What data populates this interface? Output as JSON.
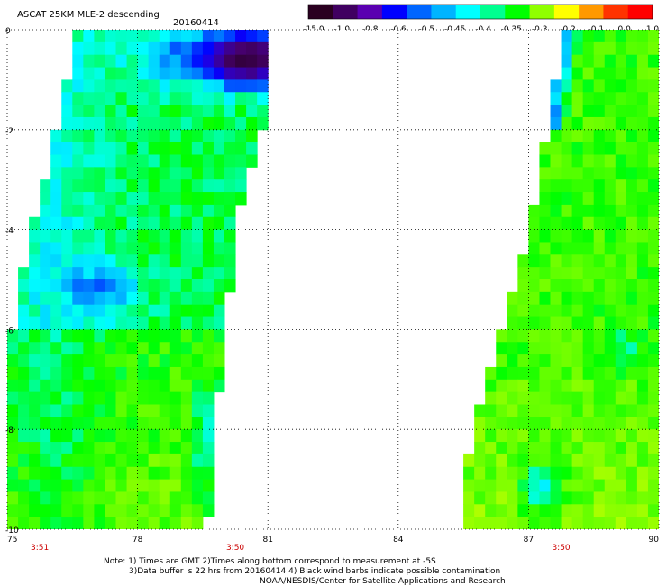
{
  "title": {
    "main": "ASCAT 25KM MLE-2 descending",
    "date": "20160414"
  },
  "colorbar": {
    "ticks": [
      "-15.0",
      "-1.0",
      "-0.8",
      "-0.6",
      "-0.5",
      "-0.45",
      "-0.4",
      "-0.35",
      "-0.3",
      "-0.2",
      "-0.1",
      "0.0",
      "1.0"
    ],
    "colors": [
      "#2a0020",
      "#400060",
      "#5a00b0",
      "#0000ff",
      "#0066ff",
      "#00b4ff",
      "#00ffff",
      "#00ff90",
      "#00ff00",
      "#90ff00",
      "#ffff00",
      "#ff9900",
      "#ff3300",
      "#ff0000"
    ]
  },
  "notes": {
    "line1": "Note: 1) Times are GMT 2)Times along bottom correspond to measurement at -5S",
    "line2": "3)Data buffer is 22 hrs from 20160414 4) Black wind barbs indicate possible contamination",
    "line3": "NOAA/NESDIS/Center for Satellite Applications and Research"
  },
  "chart_data": {
    "type": "heatmap",
    "title": "ASCAT 25KM MLE-2 descending",
    "date": "20160414",
    "x_ticks": [
      "75",
      "78",
      "81",
      "84",
      "87",
      "90"
    ],
    "y_ticks": [
      "0",
      "-2",
      "-4",
      "-6",
      "-8",
      "-10"
    ],
    "xlim": [
      75,
      90
    ],
    "ylim": [
      -10,
      0
    ],
    "grid": true,
    "time_labels": [
      {
        "lon": 75.75,
        "text": "3:51"
      },
      {
        "lon": 80.25,
        "text": "3:50"
      },
      {
        "lon": 87.75,
        "text": "3:50"
      }
    ],
    "swaths": [
      {
        "name": "west",
        "left_edge": [
          [
            76.5,
            0
          ],
          [
            76.4,
            -1
          ],
          [
            76.0,
            -2.5
          ],
          [
            75.5,
            -4.2
          ],
          [
            75.0,
            -6.5
          ],
          [
            75.0,
            -10
          ]
        ],
        "right_edge": [
          [
            81.1,
            0
          ],
          [
            81.1,
            -1.2
          ],
          [
            80.4,
            -3.3
          ],
          [
            80.1,
            -5.5
          ],
          [
            79.8,
            -7.8
          ],
          [
            79.6,
            -10
          ]
        ]
      },
      {
        "name": "east",
        "left_edge": [
          [
            87.8,
            0.0
          ],
          [
            87.5,
            -1.8
          ],
          [
            87.0,
            -4.0
          ],
          [
            86.2,
            -6.5
          ],
          [
            85.6,
            -8.5
          ],
          [
            85.5,
            -10
          ]
        ],
        "right_edge": [
          [
            90,
            0
          ],
          [
            90,
            -10
          ]
        ]
      }
    ],
    "dominant_value_range": [
      -0.4,
      -0.2
    ],
    "notable_regions": [
      {
        "lon": 80.5,
        "lat": -0.6,
        "value": -1.0,
        "note": "dark purple patch"
      },
      {
        "lon": 77.0,
        "lat": -5.2,
        "value": -0.5,
        "note": "blue patch"
      },
      {
        "lon": 87.3,
        "lat": -9.2,
        "value": -0.45,
        "note": "cyan patch"
      }
    ]
  }
}
